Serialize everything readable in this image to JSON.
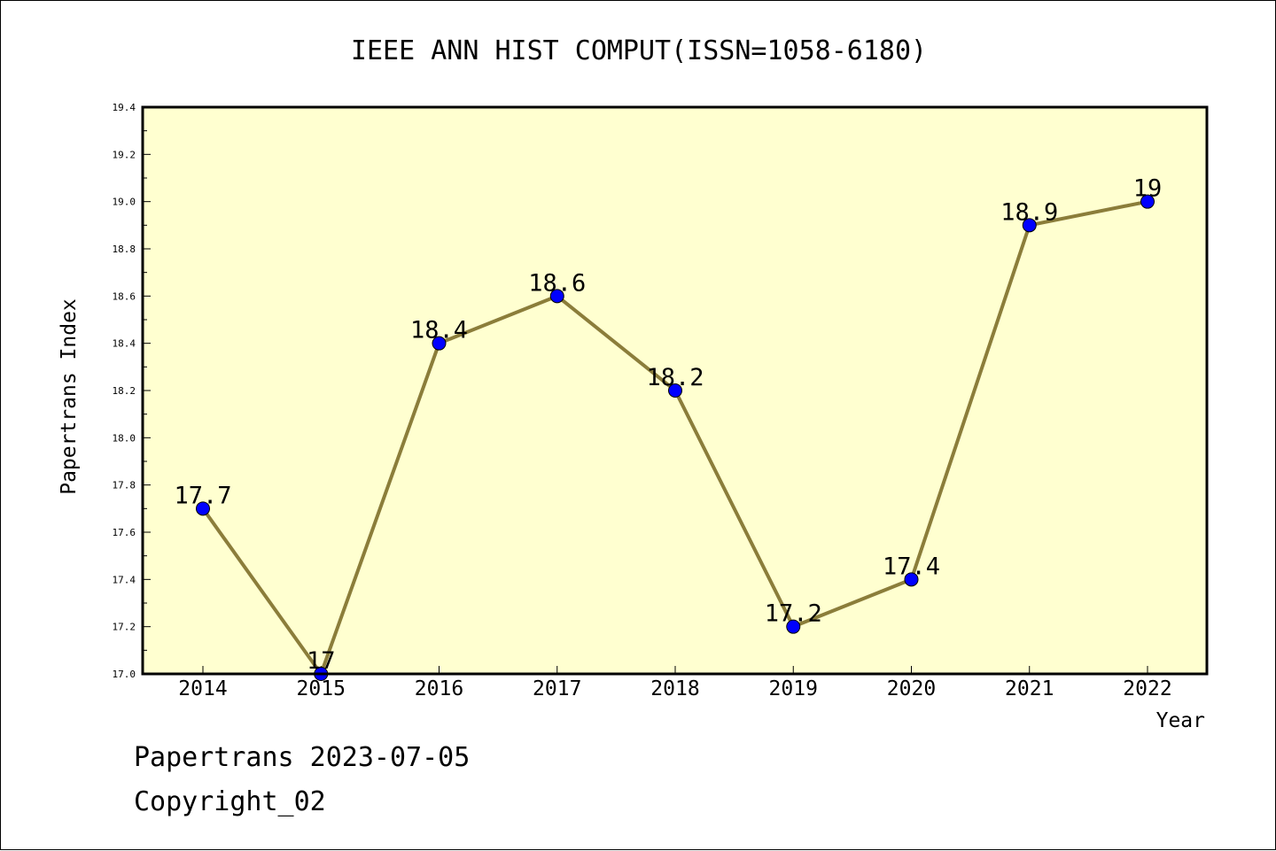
{
  "chart_data": {
    "type": "line",
    "title": "IEEE ANN HIST COMPUT(ISSN=1058-6180)",
    "xlabel": "Year",
    "ylabel": "Papertrans Index",
    "categories": [
      "2014",
      "2015",
      "2016",
      "2017",
      "2018",
      "2019",
      "2020",
      "2021",
      "2022"
    ],
    "series": [
      {
        "values": [
          17.7,
          17.0,
          18.4,
          18.6,
          18.2,
          17.2,
          17.4,
          18.9,
          19.0
        ],
        "data_labels": [
          "17.7",
          "17",
          "18.4",
          "18.6",
          "18.2",
          "17.2",
          "17.4",
          "18.9",
          "19"
        ]
      }
    ],
    "ylim": [
      17.0,
      19.4
    ],
    "yticks": [
      "17.0",
      "17.2",
      "17.4",
      "17.6",
      "17.8",
      "18.0",
      "18.2",
      "18.4",
      "18.6",
      "18.8",
      "19.0",
      "19.2",
      "19.4"
    ],
    "grid": false,
    "legend": "none",
    "colors": {
      "plot_background": "#ffffd0",
      "line": "#8b7d3a",
      "marker": "#0000ff"
    }
  },
  "footer": {
    "line1": "Papertrans 2023-07-05",
    "line2": "Copyright_02"
  }
}
